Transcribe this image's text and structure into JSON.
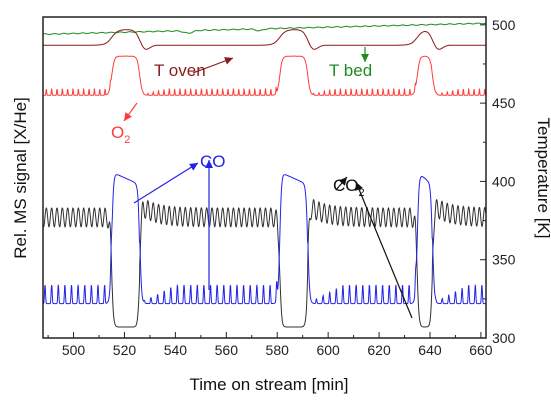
{
  "chart_data": {
    "type": "line",
    "title": "",
    "xlabel": "Time on stream [min]",
    "ylabel_left": "Rel. MS signal [X/He]",
    "ylabel_right": "Temperature [K]",
    "xlim": [
      488,
      662
    ],
    "ylim_right": [
      300,
      505
    ],
    "x_ticks": [
      500,
      520,
      540,
      560,
      580,
      600,
      620,
      640,
      660
    ],
    "y_right_ticks": [
      300,
      350,
      400,
      450,
      500
    ],
    "grid": false,
    "legend": "none",
    "colors": {
      "T_oven": "#8b1a1a",
      "T_bed": "#1f8a1f",
      "O2": "#ff3b3b",
      "CO": "#2323e6",
      "CO2": "#303030"
    },
    "profiles": {
      "O2": {
        "base": 455,
        "high": 480,
        "osc_amp": 4,
        "osc_period": 2.1
      },
      "CO": {
        "base": 322,
        "high": 406,
        "osc_amp": 12,
        "osc_period": 2.6
      },
      "CO2": {
        "base": 377,
        "low": 307,
        "osc_amp": 6,
        "osc_period": 2.1
      },
      "T_oven": {
        "base": 487,
        "high": 497
      },
      "T_bed": {
        "start": 494,
        "end": 501
      }
    },
    "pulses": [
      {
        "start": 515,
        "end": 526
      },
      {
        "start": 581,
        "end": 592
      },
      {
        "start": 635,
        "end": 641
      }
    ],
    "annotations": {
      "t_oven": "T oven",
      "t_bed": "T bed",
      "o2": "O",
      "o2_sub": "2",
      "co": "CO",
      "co2": "CO",
      "co2_sub": "2"
    }
  }
}
